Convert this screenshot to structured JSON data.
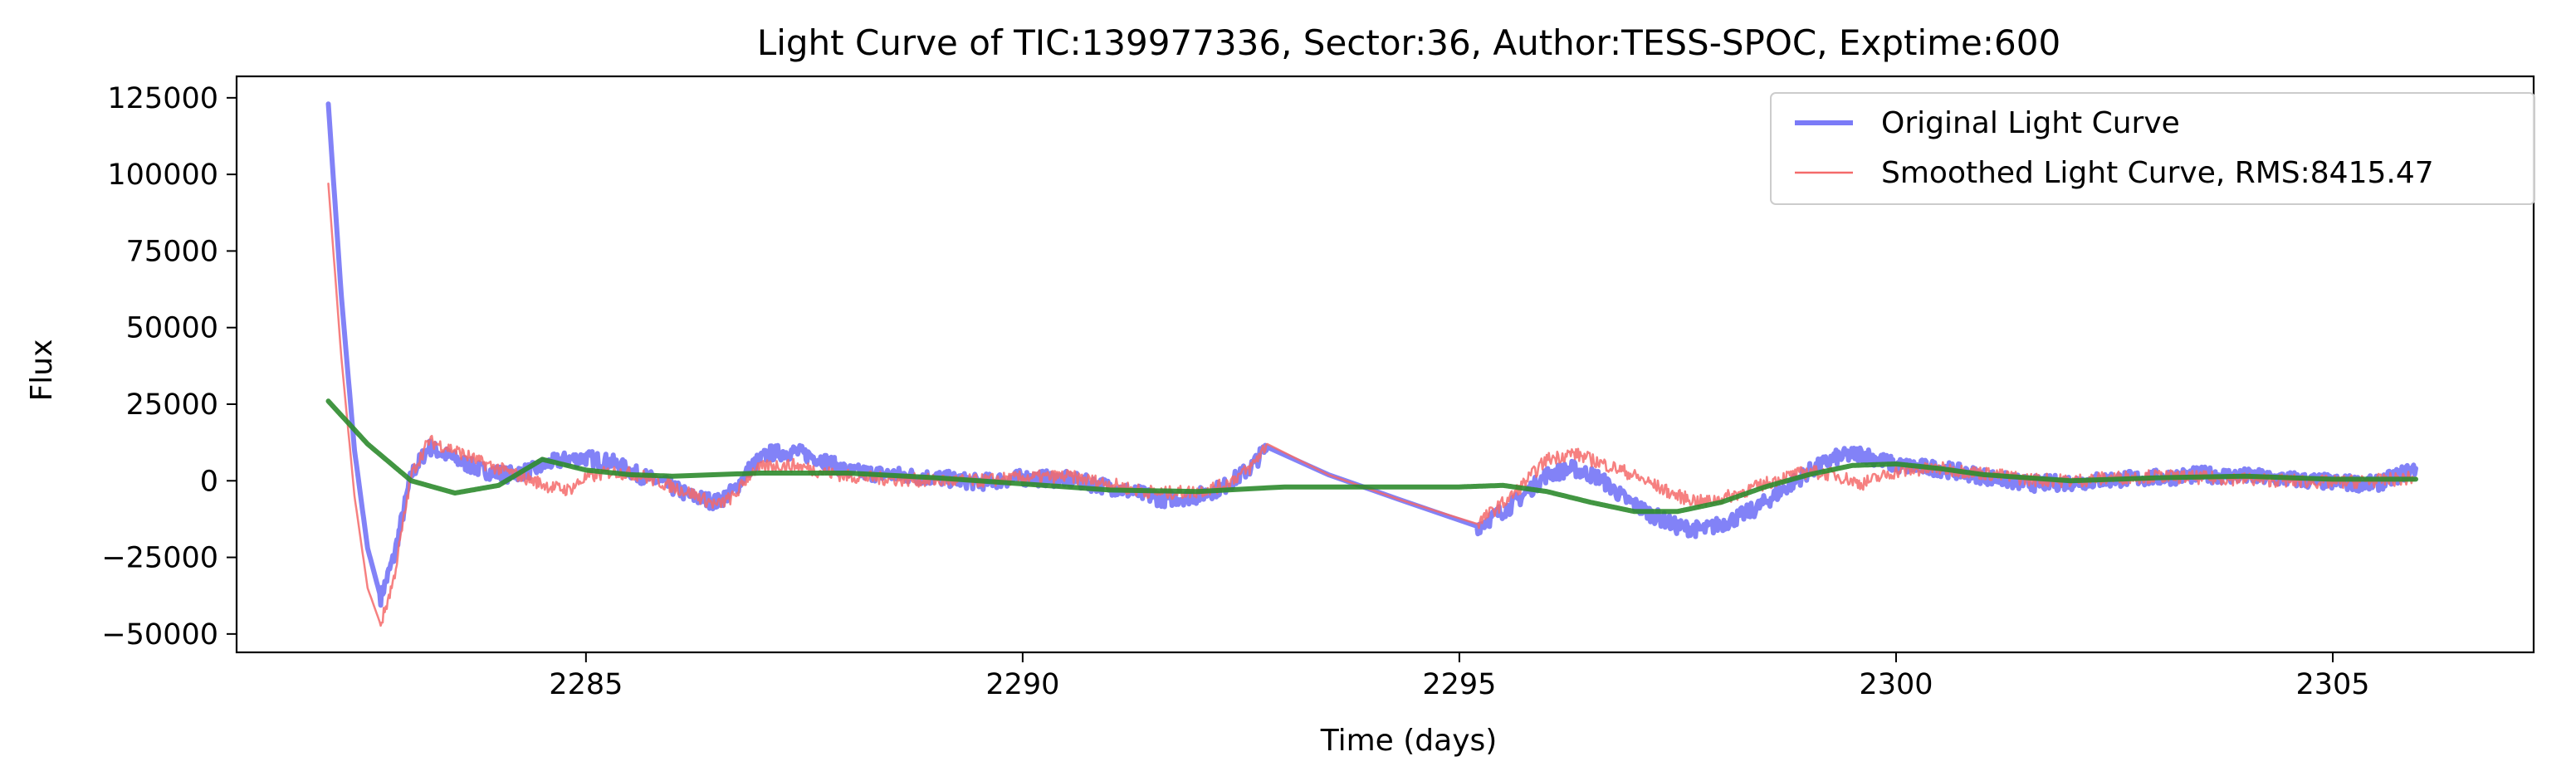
{
  "chart_data": {
    "type": "line",
    "title": "Light Curve of TIC:139977336, Sector:36, Author:TESS-SPOC, Exptime:600",
    "xlabel": "Time (days)",
    "ylabel": "Flux",
    "xlim": [
      2281.0,
      2307.3
    ],
    "ylim": [
      -56000,
      132000
    ],
    "xticks": [
      2285,
      2290,
      2295,
      2300,
      2305
    ],
    "yticks": [
      -50000,
      -25000,
      0,
      25000,
      50000,
      75000,
      100000,
      125000
    ],
    "ytick_labels": [
      "−50000",
      "−25000",
      "0",
      "25000",
      "50000",
      "75000",
      "100000",
      "125000"
    ],
    "grid": false,
    "legend_position": "top-right",
    "series": [
      {
        "name": "Original Light Curve",
        "color": "#7b7bf7",
        "style": "thick",
        "x": [
          2282.05,
          2282.2,
          2282.35,
          2282.5,
          2282.65,
          2282.8,
          2283.0,
          2283.2,
          2283.5,
          2283.8,
          2284.1,
          2284.4,
          2284.6,
          2284.8,
          2285.0,
          2285.3,
          2285.6,
          2285.9,
          2286.2,
          2286.5,
          2286.7,
          2286.9,
          2287.1,
          2287.4,
          2287.7,
          2288.0,
          2288.5,
          2289.0,
          2289.5,
          2290.0,
          2290.5,
          2291.0,
          2291.3,
          2291.6,
          2292.0,
          2292.3,
          2292.6,
          2292.8,
          2293.5,
          2294.3,
          2295.2,
          2295.6,
          2296.0,
          2296.3,
          2296.6,
          2296.9,
          2297.2,
          2297.5,
          2297.8,
          2298.1,
          2298.4,
          2298.7,
          2299.0,
          2299.3,
          2299.6,
          2300.0,
          2300.5,
          2301.0,
          2301.5,
          2302.0,
          2302.5,
          2303.0,
          2303.5,
          2304.0,
          2304.5,
          2305.0,
          2305.5,
          2305.95
        ],
        "y": [
          123000,
          60000,
          10000,
          -22000,
          -38000,
          -25000,
          2000,
          11000,
          7000,
          3500,
          2000,
          3500,
          6000,
          7000,
          7500,
          6000,
          2000,
          -1000,
          -5000,
          -7000,
          -3000,
          5000,
          9000,
          9500,
          7000,
          3000,
          2000,
          1000,
          -500,
          1000,
          500,
          -2000,
          -4000,
          -6000,
          -5000,
          -2000,
          4000,
          11000,
          2000,
          -6000,
          -15000,
          -8000,
          2000,
          4000,
          1000,
          -6000,
          -11000,
          -15000,
          -16000,
          -13000,
          -9000,
          -3000,
          3000,
          7500,
          9000,
          5000,
          4000,
          1500,
          -1000,
          -500,
          500,
          1000,
          2000,
          1500,
          500,
          -500,
          -1000,
          4000
        ]
      },
      {
        "name": "Smoothed Light Curve, RMS:8415.47",
        "color": "#f46a6a",
        "style": "thin",
        "x": [
          2282.05,
          2282.2,
          2282.35,
          2282.5,
          2282.65,
          2282.8,
          2283.0,
          2283.2,
          2283.5,
          2283.8,
          2284.1,
          2284.4,
          2284.6,
          2284.8,
          2285.0,
          2285.3,
          2285.6,
          2285.9,
          2286.2,
          2286.5,
          2286.7,
          2286.9,
          2287.1,
          2287.4,
          2287.7,
          2288.0,
          2288.5,
          2289.0,
          2289.5,
          2290.0,
          2290.5,
          2291.0,
          2291.3,
          2291.6,
          2292.0,
          2292.3,
          2292.6,
          2292.8,
          2293.5,
          2294.3,
          2295.2,
          2295.6,
          2296.0,
          2296.3,
          2296.6,
          2296.9,
          2297.2,
          2297.5,
          2297.8,
          2298.1,
          2298.4,
          2298.7,
          2299.0,
          2299.3,
          2299.6,
          2300.0,
          2300.5,
          2301.0,
          2301.5,
          2302.0,
          2302.5,
          2303.0,
          2303.5,
          2304.0,
          2304.5,
          2305.0,
          2305.5,
          2305.95
        ],
        "y": [
          97000,
          40000,
          -5000,
          -35000,
          -47000,
          -32000,
          2000,
          13000,
          10000,
          6000,
          3000,
          0,
          -2000,
          -3000,
          1000,
          3000,
          2000,
          -1000,
          -4000,
          -8000,
          -5000,
          3000,
          5000,
          5000,
          3000,
          1500,
          500,
          0,
          0,
          1000,
          1500,
          -1000,
          -3000,
          -4000,
          -3500,
          -1500,
          4000,
          12000,
          2000,
          -6000,
          -14000,
          -5000,
          7000,
          9000,
          6000,
          3000,
          -1000,
          -5000,
          -7000,
          -5000,
          -2000,
          1000,
          3000,
          2000,
          -1000,
          3000,
          4000,
          2500,
          500,
          0,
          1000,
          1500,
          1000,
          500,
          0,
          -500,
          0,
          1000
        ]
      },
      {
        "name": "",
        "color": "#2e8b2e",
        "style": "thick",
        "x": [
          2282.05,
          2282.5,
          2283.0,
          2283.5,
          2284.0,
          2284.5,
          2285.0,
          2285.5,
          2286.0,
          2287.0,
          2288.0,
          2289.0,
          2290.0,
          2291.0,
          2292.0,
          2293.0,
          2294.0,
          2295.0,
          2295.5,
          2296.0,
          2296.5,
          2297.0,
          2297.5,
          2298.0,
          2298.5,
          2299.0,
          2299.5,
          2300.0,
          2300.5,
          2301.0,
          2302.0,
          2303.0,
          2304.0,
          2305.0,
          2305.95
        ],
        "y": [
          26000,
          12000,
          0,
          -4000,
          -1500,
          7000,
          3500,
          2000,
          1500,
          2500,
          2500,
          1000,
          -1000,
          -3000,
          -3500,
          -2000,
          -2000,
          -2000,
          -1500,
          -3500,
          -7000,
          -10000,
          -10000,
          -7000,
          -2000,
          2000,
          5000,
          5500,
          4000,
          2000,
          0,
          1000,
          1500,
          500,
          500
        ]
      }
    ]
  }
}
